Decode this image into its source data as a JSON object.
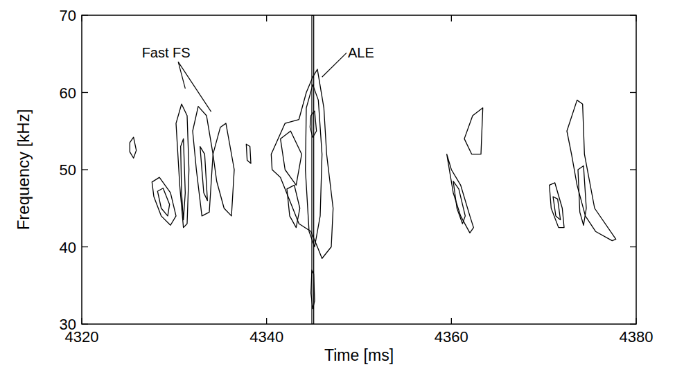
{
  "chart_data": {
    "type": "contour",
    "x_label": "Time [ms]",
    "y_label": "Frequency [kHz]",
    "xlim": [
      4320,
      4380
    ],
    "xticks": [
      4320,
      4340,
      4360,
      4380
    ],
    "ylim": [
      30,
      70
    ],
    "yticks": [
      30,
      40,
      50,
      60,
      70
    ],
    "color": "#000000",
    "contours": [
      {
        "x": [
          4325.2,
          4325.6,
          4325.9,
          4325.6,
          4325.2
        ],
        "y": [
          53.5,
          54.2,
          52.5,
          51.5,
          52.3
        ]
      },
      {
        "x": [
          4327.6,
          4328.4,
          4329.6,
          4330.2,
          4329.6,
          4328.6,
          4327.8
        ],
        "y": [
          48.4,
          49,
          47,
          44,
          42.8,
          44,
          46.5
        ]
      },
      {
        "x": [
          4328.2,
          4328.8,
          4329.5,
          4329.3,
          4328.6
        ],
        "y": [
          47.2,
          47.6,
          45.5,
          44,
          45
        ]
      },
      {
        "x": [
          4330.2,
          4330.8,
          4331.4,
          4331.6,
          4331.4,
          4331.0,
          4330.6
        ],
        "y": [
          56,
          58.5,
          57,
          50,
          43,
          42.5,
          48
        ]
      },
      {
        "x": [
          4330.7,
          4331.0,
          4331.2,
          4331.0,
          4330.8
        ],
        "y": [
          53,
          54,
          47,
          43.5,
          47
        ]
      },
      {
        "x": [
          4332,
          4332.6,
          4333.5,
          4334.2,
          4333.8,
          4333.0,
          4332.4
        ],
        "y": [
          55,
          58.2,
          57,
          52,
          44.5,
          44,
          50
        ]
      },
      {
        "x": [
          4332.8,
          4333.3,
          4333.6,
          4333.2
        ],
        "y": [
          53,
          52,
          46,
          47
        ]
      },
      {
        "x": [
          4334.2,
          4335,
          4335.6,
          4336.5,
          4336.2,
          4335.4,
          4334.6
        ],
        "y": [
          52,
          55.5,
          56,
          50,
          44,
          45,
          48.5
        ]
      },
      {
        "x": [
          4337.8,
          4338.2,
          4338.3,
          4337.9
        ],
        "y": [
          53.3,
          53,
          50.8,
          51.2
        ]
      },
      {
        "x": [
          4340.5,
          4342,
          4343.5,
          4344.3,
          4345,
          4345.5,
          4346.2,
          4346.5,
          4347.2,
          4347,
          4346,
          4345.5,
          4344.8,
          4343.5,
          4342.5,
          4341.5,
          4340.6
        ],
        "y": [
          52,
          56,
          56.5,
          60,
          62,
          63,
          58,
          52,
          45,
          40,
          38.5,
          40,
          42,
          43,
          46,
          49,
          50
        ]
      },
      {
        "x": [
          4344.3,
          4345,
          4345.6,
          4346,
          4345.8,
          4345.2,
          4344.6,
          4344.2
        ],
        "y": [
          58,
          61,
          59,
          52,
          44,
          40,
          42,
          50
        ]
      },
      {
        "x": [
          4341.5,
          4342.6,
          4343.8,
          4343.2,
          4342
        ],
        "y": [
          54,
          55,
          52,
          48,
          50
        ]
      },
      {
        "x": [
          4344.8,
          4345.2,
          4345.4,
          4345,
          4344.7
        ],
        "y": [
          57,
          57.6,
          55,
          54.2,
          55.5
        ]
      },
      {
        "x": [
          4342.2,
          4343,
          4343.6,
          4343.2,
          4342.5
        ],
        "y": [
          47.5,
          48,
          45,
          42.5,
          44
        ]
      },
      {
        "x": [
          4344.9,
          4345.1,
          4345.2,
          4345.0,
          4344.8
        ],
        "y": [
          37,
          36.5,
          33,
          32,
          34
        ]
      },
      {
        "x": [
          4344.9,
          4345.1,
          4345.1,
          4344.9
        ],
        "y": [
          70,
          70,
          30,
          30
        ]
      },
      {
        "x": [
          4359.5,
          4360,
          4361,
          4362,
          4362.4,
          4362,
          4361,
          4360.2
        ],
        "y": [
          52,
          50,
          48,
          44,
          42.5,
          41.8,
          44,
          47
        ]
      },
      {
        "x": [
          4360.2,
          4360.8,
          4361.5,
          4361.2,
          4360.6
        ],
        "y": [
          48.5,
          47.5,
          44,
          43,
          45
        ]
      },
      {
        "x": [
          4361.4,
          4362.3,
          4363.4,
          4363.2,
          4362.2
        ],
        "y": [
          54,
          57,
          58,
          52,
          52
        ]
      },
      {
        "x": [
          4370.6,
          4371.2,
          4372,
          4372.2,
          4371.6,
          4370.8
        ],
        "y": [
          48,
          48.3,
          45,
          42.5,
          42.5,
          45
        ]
      },
      {
        "x": [
          4371,
          4371.5,
          4371.8,
          4371.3
        ],
        "y": [
          46.5,
          46.2,
          43.5,
          44
        ]
      },
      {
        "x": [
          4372.5,
          4373.6,
          4374.2,
          4374.4,
          4375.5,
          4377.8,
          4377.4,
          4375.6,
          4374.5,
          4373.6,
          4373
        ],
        "y": [
          55,
          59,
          58.5,
          52,
          45,
          41,
          40.8,
          42,
          44,
          48,
          52
        ]
      },
      {
        "x": [
          4373.7,
          4374.3,
          4374.6,
          4374.3,
          4373.9
        ],
        "y": [
          50,
          50.5,
          45,
          42.8,
          44.5
        ]
      }
    ],
    "annotations": [
      {
        "text": "Fast FS",
        "x": 4326.5,
        "y": 64.5,
        "points": [
          {
            "x": 4331.2,
            "y": 60.5
          },
          {
            "x": 4334,
            "y": 57.5
          }
        ]
      },
      {
        "text": "ALE",
        "x": 4348.8,
        "y": 64.5,
        "points": [
          {
            "x": 4346,
            "y": 62
          }
        ]
      }
    ]
  }
}
